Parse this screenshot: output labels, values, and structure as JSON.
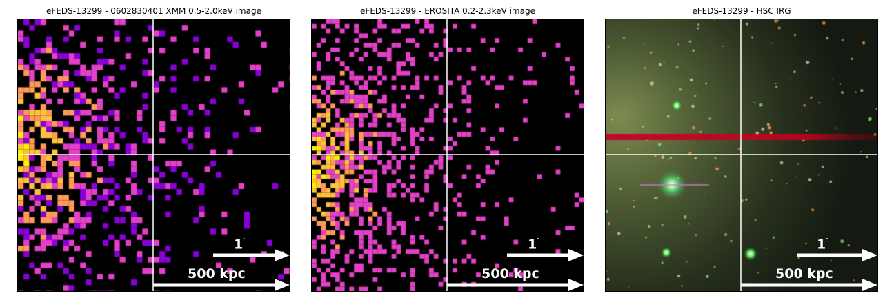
{
  "panels": [
    {
      "id": "xmm",
      "title": "eFEDS-13299 - 0602830401 XMM 0.5-2.0keV image",
      "scale_angle": "1",
      "scale_angle_unit": "′",
      "scale_distance": "500 kpc"
    },
    {
      "id": "erosita",
      "title": "eFEDS-13299 -  EROSITA 0.2-2.3keV image",
      "scale_angle": "1",
      "scale_angle_unit": "′",
      "scale_distance": "500 kpc"
    },
    {
      "id": "hsc",
      "title": "eFEDS-13299 - HSC IRG",
      "scale_angle": "1",
      "scale_angle_unit": "′",
      "scale_distance": "500 kpc"
    }
  ],
  "colors": {
    "plasma_low": "#8a00d8",
    "plasma_mid": "#e541c8",
    "plasma_high": "#ff9a5a",
    "plasma_peak": "#ffef00",
    "crosshair": "#ffffff"
  }
}
